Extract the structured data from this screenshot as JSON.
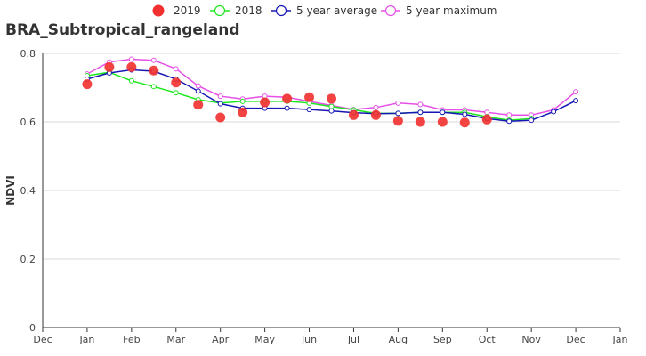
{
  "chart_data": {
    "type": "line",
    "title": "BRA_Subtropical_rangeland",
    "xlabel": "",
    "ylabel": "NDVI",
    "ylim": [
      0,
      0.8
    ],
    "yticks": [
      "0",
      "0.2",
      "0.4",
      "0.6",
      "0.8"
    ],
    "xticks": [
      "Dec",
      "Jan",
      "Feb",
      "Mar",
      "Apr",
      "May",
      "Jun",
      "Jul",
      "Aug",
      "Sep",
      "Oct",
      "Nov",
      "Dec",
      "Jan"
    ],
    "grid": "horizontal",
    "legend_position": "top-center",
    "x_unit": "month (0 = Dec, 1 = Jan, ..., 12 = Dec, 13 = Jan)",
    "series": [
      {
        "name": "2019",
        "style": "scatter",
        "color": "#f23030",
        "x": [
          1,
          1.5,
          2,
          2.5,
          3,
          3.5,
          4,
          4.5,
          5,
          5.5,
          6,
          6.5,
          7,
          7.5,
          8,
          8.5,
          9,
          9.5,
          10
        ],
        "values": [
          0.71,
          0.76,
          0.76,
          0.75,
          0.715,
          0.65,
          0.613,
          0.628,
          0.657,
          0.668,
          0.672,
          0.668,
          0.62,
          0.62,
          0.603,
          0.6,
          0.6,
          0.598,
          0.607
        ]
      },
      {
        "name": "2018",
        "style": "line",
        "color": "#1ee61e",
        "x": [
          1,
          1.5,
          2,
          2.5,
          3,
          3.5,
          4,
          4.5,
          5,
          5.5,
          6,
          6.5,
          7,
          7.5,
          8,
          8.5,
          9,
          9.5,
          10,
          10.5,
          11
        ],
        "values": [
          0.735,
          0.745,
          0.72,
          0.703,
          0.685,
          0.665,
          0.655,
          0.66,
          0.66,
          0.66,
          0.655,
          0.645,
          0.635,
          0.625,
          0.625,
          0.628,
          0.628,
          0.628,
          0.615,
          0.605,
          0.61
        ]
      },
      {
        "name": "5 year average",
        "style": "line",
        "color": "#1616b4",
        "x": [
          1,
          1.5,
          2,
          2.5,
          3,
          3.5,
          4,
          4.5,
          5,
          5.5,
          6,
          6.5,
          7,
          7.5,
          8,
          8.5,
          9,
          9.5,
          10,
          10.5,
          11,
          11.5,
          12
        ],
        "values": [
          0.725,
          0.743,
          0.752,
          0.748,
          0.725,
          0.69,
          0.653,
          0.64,
          0.64,
          0.64,
          0.636,
          0.632,
          0.627,
          0.624,
          0.625,
          0.628,
          0.628,
          0.622,
          0.61,
          0.602,
          0.605,
          0.63,
          0.662
        ]
      },
      {
        "name": "5 year maximum",
        "style": "line",
        "color": "#e650e6",
        "x": [
          1,
          1.5,
          2,
          2.5,
          3,
          3.5,
          4,
          4.5,
          5,
          5.5,
          6,
          6.5,
          7,
          7.5,
          8,
          8.5,
          9,
          9.5,
          10,
          10.5,
          11,
          11.5,
          12
        ],
        "values": [
          0.74,
          0.775,
          0.783,
          0.78,
          0.755,
          0.705,
          0.675,
          0.667,
          0.675,
          0.672,
          0.66,
          0.648,
          0.636,
          0.642,
          0.655,
          0.651,
          0.635,
          0.635,
          0.628,
          0.62,
          0.62,
          0.635,
          0.688
        ]
      }
    ]
  }
}
